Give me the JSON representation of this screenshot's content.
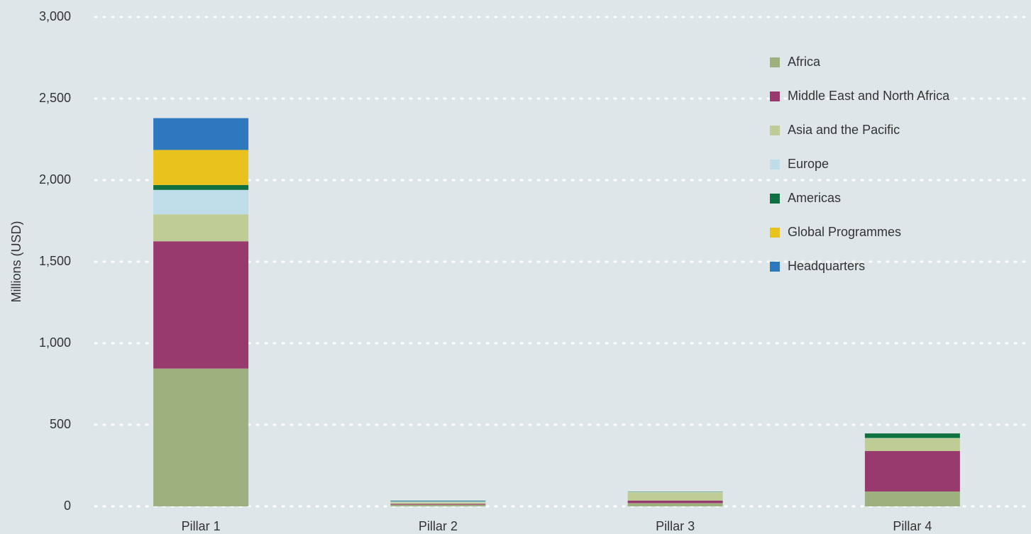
{
  "chart_data": {
    "type": "stacked_bar",
    "ylabel": "Millions (USD)",
    "categories": [
      "Pillar 1",
      "Pillar 2",
      "Pillar 3",
      "Pillar 4"
    ],
    "series": [
      {
        "name": "Africa",
        "color": "#9fb07f",
        "values": [
          845,
          10,
          20,
          91
        ]
      },
      {
        "name": "Middle East and North Africa",
        "color": "#993a6e",
        "values": [
          780,
          5,
          15,
          248
        ]
      },
      {
        "name": "Asia and the Pacific",
        "color": "#c0cc96",
        "values": [
          165,
          10,
          50,
          78
        ]
      },
      {
        "name": "Europe",
        "color": "#bfdde9",
        "values": [
          150,
          5,
          2,
          2
        ]
      },
      {
        "name": "Americas",
        "color": "#0f7040",
        "values": [
          30,
          3,
          2,
          28
        ]
      },
      {
        "name": "Global Programmes",
        "color": "#e9c21e",
        "values": [
          215,
          0,
          0,
          0
        ]
      },
      {
        "name": "Headquarters",
        "color": "#2e78be",
        "values": [
          195,
          2,
          0,
          0
        ]
      }
    ],
    "ylim": [
      0,
      3000
    ],
    "yticks": [
      0,
      500,
      {
        "value": 1000,
        "label": "1,000"
      },
      {
        "value": 1500,
        "label": "1,500"
      },
      {
        "value": 2000,
        "label": "2,000"
      },
      {
        "value": 2500,
        "label": "2,500"
      },
      {
        "value": 3000,
        "label": "3,000"
      }
    ],
    "grid": true,
    "legend": "upper right"
  }
}
